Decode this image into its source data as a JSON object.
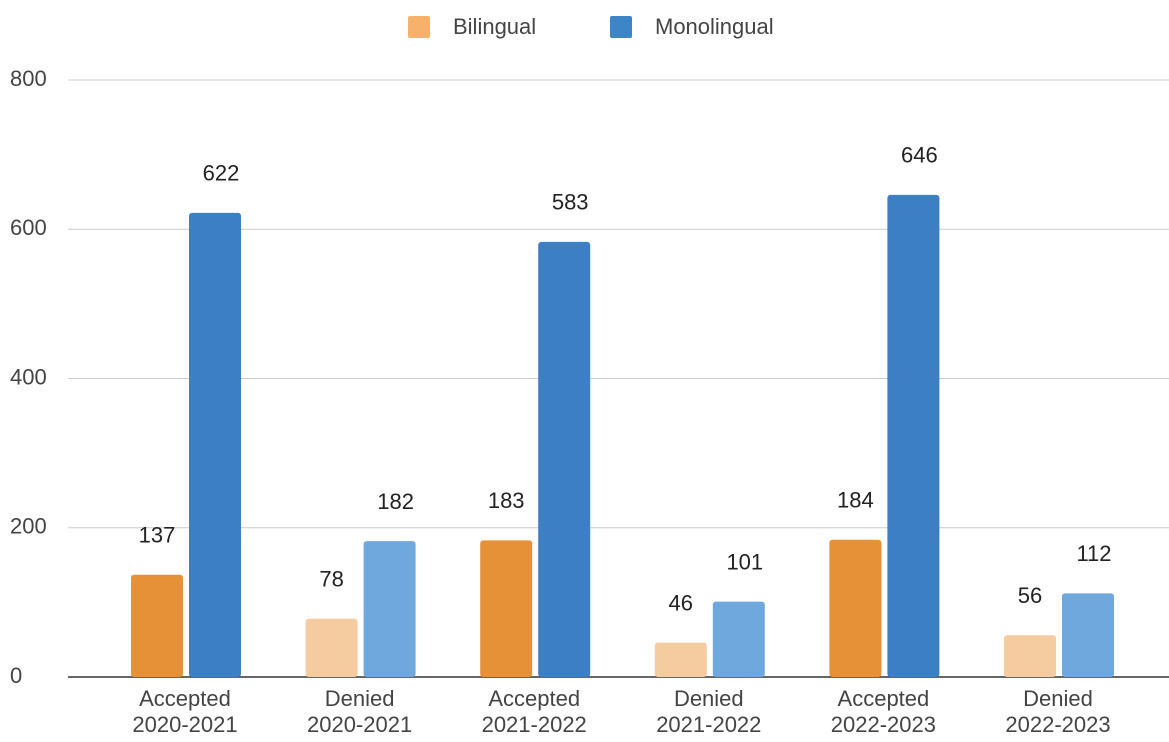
{
  "chart_data": {
    "type": "bar",
    "categories": [
      [
        "Accepted",
        "2020-2021"
      ],
      [
        "Denied",
        "2020-2021"
      ],
      [
        "Accepted",
        "2021-2022"
      ],
      [
        "Denied",
        "2021-2022"
      ],
      [
        "Accepted",
        "2022-2023"
      ],
      [
        "Denied",
        "2022-2023"
      ]
    ],
    "series": [
      {
        "name": "Bilingual",
        "color": "#f6b26b",
        "values": [
          137,
          78,
          183,
          46,
          184,
          56
        ],
        "colors": [
          "#e69138",
          "#f5cba0",
          "#e69138",
          "#f5cba0",
          "#e69138",
          "#f5cba0"
        ]
      },
      {
        "name": "Monolingual",
        "color": "#3d85c6",
        "values": [
          622,
          182,
          583,
          101,
          646,
          112
        ],
        "colors": [
          "#3d7fc4",
          "#6fa8dc",
          "#3d7fc4",
          "#6fa8dc",
          "#3d7fc4",
          "#6fa8dc"
        ]
      }
    ],
    "ylim": [
      0,
      800
    ],
    "yticks": [
      0,
      200,
      400,
      600,
      800
    ],
    "grid": true,
    "legend": "top"
  }
}
